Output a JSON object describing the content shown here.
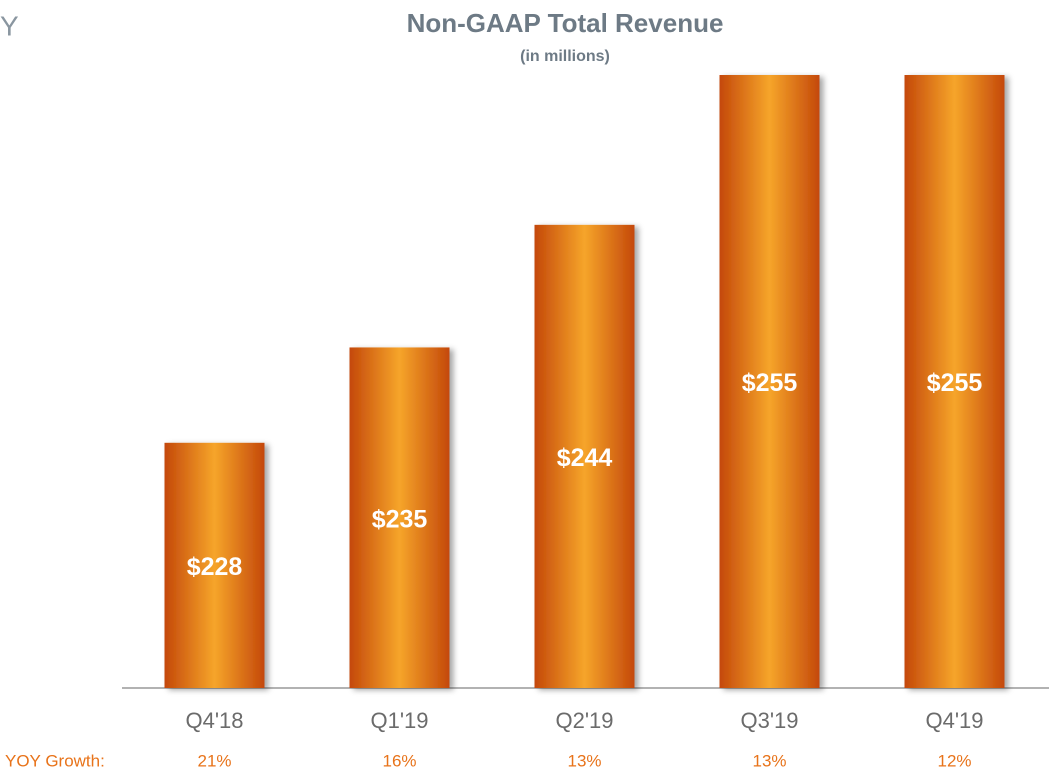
{
  "edge_text": "Y",
  "chart_data": {
    "type": "bar",
    "title": "Non-GAAP Total Revenue",
    "subtitle": "(in millions)",
    "categories": [
      "Q4'18",
      "Q1'19",
      "Q2'19",
      "Q3'19",
      "Q4'19"
    ],
    "values": [
      228,
      235,
      244,
      255,
      255
    ],
    "value_labels": [
      "$228",
      "$235",
      "$244",
      "$255",
      "$255"
    ],
    "color": "#e0701a",
    "ylim": [
      210,
      255
    ],
    "yoy_growth": {
      "label": "YOY Growth:",
      "labels": [
        "21%",
        "16%",
        "13%",
        "13%",
        "12%"
      ]
    }
  }
}
